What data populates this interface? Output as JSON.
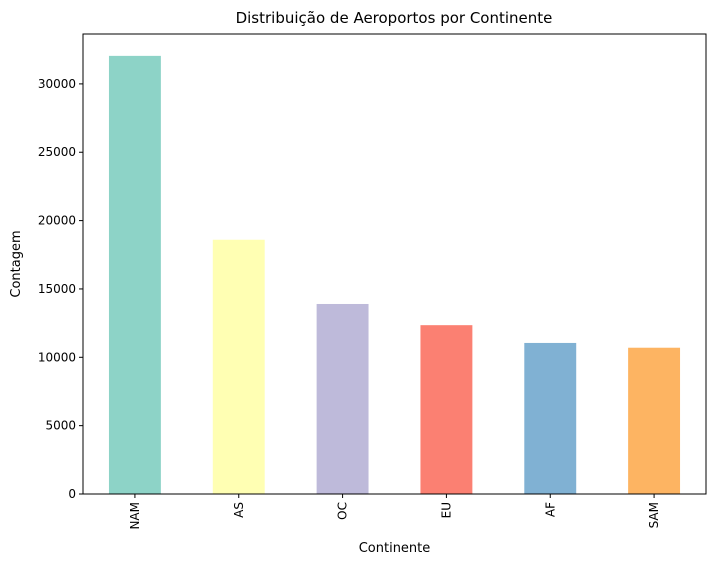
{
  "chart_data": {
    "type": "bar",
    "title": "Distribuição de Aeroportos por Continente",
    "xlabel": "Continente",
    "ylabel": "Contagem",
    "categories": [
      "NAM",
      "AS",
      "OC",
      "EU",
      "AF",
      "SAM"
    ],
    "values": [
      32050,
      18600,
      13900,
      12350,
      11050,
      10700
    ],
    "colors": [
      "#8dd3c7",
      "#ffffb3",
      "#bebada",
      "#fb8072",
      "#80b1d3",
      "#fdb462"
    ],
    "ylim": [
      0,
      33650
    ],
    "yticks": [
      0,
      5000,
      10000,
      15000,
      20000,
      25000,
      30000
    ],
    "ytick_labels": [
      "0",
      "5000",
      "10000",
      "15000",
      "20000",
      "25000",
      "30000"
    ],
    "grid": false,
    "legend": "none"
  }
}
